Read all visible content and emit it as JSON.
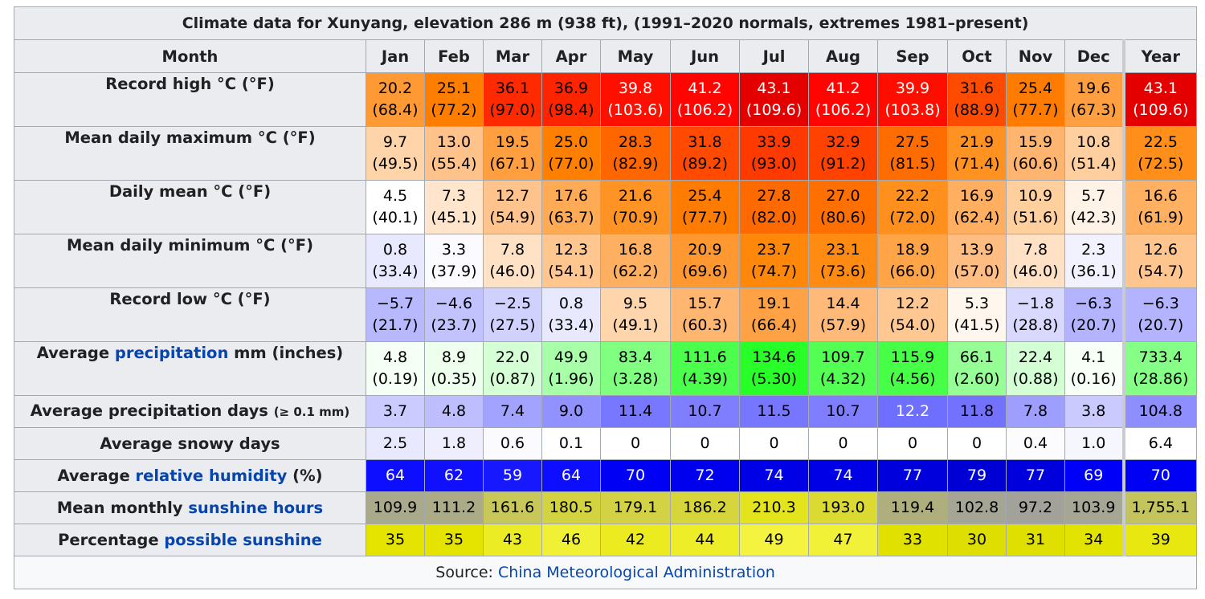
{
  "title": "Climate data for Xunyang, elevation 286 m (938 ft), (1991–2020 normals, extremes 1981–present)",
  "header": {
    "label": "Month",
    "months": [
      "Jan",
      "Feb",
      "Mar",
      "Apr",
      "May",
      "Jun",
      "Jul",
      "Aug",
      "Sep",
      "Oct",
      "Nov",
      "Dec",
      "Year"
    ]
  },
  "rows": [
    {
      "label": "Record high °C (°F)",
      "cells": [
        {
          "c": "20.2",
          "f": "(68.4)",
          "bg": "#ff9933",
          "fg": "#000000"
        },
        {
          "c": "25.1",
          "f": "(77.2)",
          "bg": "#ff7e00",
          "fg": "#000000"
        },
        {
          "c": "36.1",
          "f": "(97.0)",
          "bg": "#ff2a00",
          "fg": "#000000"
        },
        {
          "c": "36.9",
          "f": "(98.4)",
          "bg": "#ff2400",
          "fg": "#000000"
        },
        {
          "c": "39.8",
          "f": "(103.6)",
          "bg": "#ff0f00",
          "fg": "#ffffff"
        },
        {
          "c": "41.2",
          "f": "(106.2)",
          "bg": "#ff0400",
          "fg": "#ffffff"
        },
        {
          "c": "43.1",
          "f": "(109.6)",
          "bg": "#e50000",
          "fg": "#ffffff"
        },
        {
          "c": "41.2",
          "f": "(106.2)",
          "bg": "#ff0400",
          "fg": "#ffffff"
        },
        {
          "c": "39.9",
          "f": "(103.8)",
          "bg": "#ff0e00",
          "fg": "#ffffff"
        },
        {
          "c": "31.6",
          "f": "(88.9)",
          "bg": "#ff4b00",
          "fg": "#000000"
        },
        {
          "c": "25.4",
          "f": "(77.7)",
          "bg": "#ff7c00",
          "fg": "#000000"
        },
        {
          "c": "19.6",
          "f": "(67.3)",
          "bg": "#ff9f40",
          "fg": "#000000"
        },
        {
          "c": "43.1",
          "f": "(109.6)",
          "bg": "#e50000",
          "fg": "#ffffff"
        }
      ]
    },
    {
      "label": "Mean daily maximum °C (°F)",
      "cells": [
        {
          "c": "9.7",
          "f": "(49.5)",
          "bg": "#ffd4a9",
          "fg": "#000000"
        },
        {
          "c": "13.0",
          "f": "(55.4)",
          "bg": "#ffc28a",
          "fg": "#000000"
        },
        {
          "c": "19.5",
          "f": "(67.1)",
          "bg": "#ff9f40",
          "fg": "#000000"
        },
        {
          "c": "25.0",
          "f": "(77.0)",
          "bg": "#ff7f00",
          "fg": "#000000"
        },
        {
          "c": "28.3",
          "f": "(82.9)",
          "bg": "#ff6600",
          "fg": "#000000"
        },
        {
          "c": "31.8",
          "f": "(89.2)",
          "bg": "#ff4a00",
          "fg": "#000000"
        },
        {
          "c": "33.9",
          "f": "(93.0)",
          "bg": "#ff3a00",
          "fg": "#000000"
        },
        {
          "c": "32.9",
          "f": "(91.2)",
          "bg": "#ff4200",
          "fg": "#000000"
        },
        {
          "c": "27.5",
          "f": "(81.5)",
          "bg": "#ff6c00",
          "fg": "#000000"
        },
        {
          "c": "21.9",
          "f": "(71.4)",
          "bg": "#ff9220",
          "fg": "#000000"
        },
        {
          "c": "15.9",
          "f": "(60.6)",
          "bg": "#ffb570",
          "fg": "#000000"
        },
        {
          "c": "10.8",
          "f": "(51.4)",
          "bg": "#ffcf9f",
          "fg": "#000000"
        },
        {
          "c": "22.5",
          "f": "(72.5)",
          "bg": "#ff8e1a",
          "fg": "#000000"
        }
      ]
    },
    {
      "label": "Daily mean °C (°F)",
      "cells": [
        {
          "c": "4.5",
          "f": "(40.1)",
          "bg": "#ffffff",
          "fg": "#000000"
        },
        {
          "c": "7.3",
          "f": "(45.1)",
          "bg": "#ffe5cb",
          "fg": "#000000"
        },
        {
          "c": "12.7",
          "f": "(54.9)",
          "bg": "#ffc48d",
          "fg": "#000000"
        },
        {
          "c": "17.6",
          "f": "(63.7)",
          "bg": "#ffab56",
          "fg": "#000000"
        },
        {
          "c": "21.6",
          "f": "(70.9)",
          "bg": "#ff9424",
          "fg": "#000000"
        },
        {
          "c": "25.4",
          "f": "(77.7)",
          "bg": "#ff7c00",
          "fg": "#000000"
        },
        {
          "c": "27.8",
          "f": "(82.0)",
          "bg": "#ff6a00",
          "fg": "#000000"
        },
        {
          "c": "27.0",
          "f": "(80.6)",
          "bg": "#ff7000",
          "fg": "#000000"
        },
        {
          "c": "22.2",
          "f": "(72.0)",
          "bg": "#ff901d",
          "fg": "#000000"
        },
        {
          "c": "16.9",
          "f": "(62.4)",
          "bg": "#ffaf5f",
          "fg": "#000000"
        },
        {
          "c": "10.9",
          "f": "(51.6)",
          "bg": "#ffcf9e",
          "fg": "#000000"
        },
        {
          "c": "5.7",
          "f": "(42.3)",
          "bg": "#fff3e7",
          "fg": "#000000"
        },
        {
          "c": "16.6",
          "f": "(61.9)",
          "bg": "#ffb061",
          "fg": "#000000"
        }
      ]
    },
    {
      "label": "Mean daily minimum °C (°F)",
      "cells": [
        {
          "c": "0.8",
          "f": "(33.4)",
          "bg": "#e8e8ff",
          "fg": "#000000"
        },
        {
          "c": "3.3",
          "f": "(37.9)",
          "bg": "#fbfbff",
          "fg": "#000000"
        },
        {
          "c": "7.8",
          "f": "(46.0)",
          "bg": "#ffe2c5",
          "fg": "#000000"
        },
        {
          "c": "12.3",
          "f": "(54.1)",
          "bg": "#ffc690",
          "fg": "#000000"
        },
        {
          "c": "16.8",
          "f": "(62.2)",
          "bg": "#ffaf60",
          "fg": "#000000"
        },
        {
          "c": "20.9",
          "f": "(69.6)",
          "bg": "#ff9830",
          "fg": "#000000"
        },
        {
          "c": "23.7",
          "f": "(74.7)",
          "bg": "#ff8709",
          "fg": "#000000"
        },
        {
          "c": "23.1",
          "f": "(73.6)",
          "bg": "#ff8b12",
          "fg": "#000000"
        },
        {
          "c": "18.9",
          "f": "(66.0)",
          "bg": "#ffa447",
          "fg": "#000000"
        },
        {
          "c": "13.9",
          "f": "(57.0)",
          "bg": "#ffbd81",
          "fg": "#000000"
        },
        {
          "c": "7.8",
          "f": "(46.0)",
          "bg": "#ffe2c5",
          "fg": "#000000"
        },
        {
          "c": "2.3",
          "f": "(36.1)",
          "bg": "#f2f2ff",
          "fg": "#000000"
        },
        {
          "c": "12.6",
          "f": "(54.7)",
          "bg": "#ffc58e",
          "fg": "#000000"
        }
      ]
    },
    {
      "label": "Record low °C (°F)",
      "cells": [
        {
          "c": "−5.7",
          "f": "(21.7)",
          "bg": "#b8b8ff",
          "fg": "#000000"
        },
        {
          "c": "−4.6",
          "f": "(23.7)",
          "bg": "#c2c2ff",
          "fg": "#000000"
        },
        {
          "c": "−2.5",
          "f": "(27.5)",
          "bg": "#d1d1ff",
          "fg": "#000000"
        },
        {
          "c": "0.8",
          "f": "(33.4)",
          "bg": "#e8e8ff",
          "fg": "#000000"
        },
        {
          "c": "9.5",
          "f": "(49.1)",
          "bg": "#ffd5ab",
          "fg": "#000000"
        },
        {
          "c": "15.7",
          "f": "(60.3)",
          "bg": "#ffb671",
          "fg": "#000000"
        },
        {
          "c": "19.1",
          "f": "(66.4)",
          "bg": "#ffa245",
          "fg": "#000000"
        },
        {
          "c": "14.4",
          "f": "(57.9)",
          "bg": "#ffba79",
          "fg": "#000000"
        },
        {
          "c": "12.2",
          "f": "(54.0)",
          "bg": "#ffc792",
          "fg": "#000000"
        },
        {
          "c": "5.3",
          "f": "(41.5)",
          "bg": "#fff6ee",
          "fg": "#000000"
        },
        {
          "c": "−1.8",
          "f": "(28.8)",
          "bg": "#d9d9ff",
          "fg": "#000000"
        },
        {
          "c": "−6.3",
          "f": "(20.7)",
          "bg": "#b3b3ff",
          "fg": "#000000"
        },
        {
          "c": "−6.3",
          "f": "(20.7)",
          "bg": "#b3b3ff",
          "fg": "#000000"
        }
      ]
    },
    {
      "label_parts": [
        "Average ",
        "precipitation",
        " mm (inches)"
      ],
      "cells": [
        {
          "c": "4.8",
          "f": "(0.19)",
          "bg": "#f6fff6",
          "fg": "#000000"
        },
        {
          "c": "8.9",
          "f": "(0.35)",
          "bg": "#eeffee",
          "fg": "#000000"
        },
        {
          "c": "22.0",
          "f": "(0.87)",
          "bg": "#d5ffd5",
          "fg": "#000000"
        },
        {
          "c": "49.9",
          "f": "(1.96)",
          "bg": "#a7ffa7",
          "fg": "#000000"
        },
        {
          "c": "83.4",
          "f": "(3.28)",
          "bg": "#80ff80",
          "fg": "#000000"
        },
        {
          "c": "111.6",
          "f": "(4.39)",
          "bg": "#4cff4c",
          "fg": "#000000"
        },
        {
          "c": "134.6",
          "f": "(5.30)",
          "bg": "#28ff28",
          "fg": "#000000"
        },
        {
          "c": "109.7",
          "f": "(4.32)",
          "bg": "#52ff52",
          "fg": "#000000"
        },
        {
          "c": "115.9",
          "f": "(4.56)",
          "bg": "#48ff48",
          "fg": "#000000"
        },
        {
          "c": "66.1",
          "f": "(2.60)",
          "bg": "#95ff95",
          "fg": "#000000"
        },
        {
          "c": "22.4",
          "f": "(0.88)",
          "bg": "#d4ffd4",
          "fg": "#000000"
        },
        {
          "c": "4.1",
          "f": "(0.16)",
          "bg": "#f7fff7",
          "fg": "#000000"
        },
        {
          "c": "733.4",
          "f": "(28.86)",
          "bg": "#86ff86",
          "fg": "#000000"
        }
      ]
    },
    {
      "label_parts": [
        "Average precipitation days ",
        "(≥ 0.1 mm)"
      ],
      "cells": [
        {
          "c": "3.7",
          "bg": "#cbcbff",
          "fg": "#000000"
        },
        {
          "c": "4.8",
          "bg": "#bebeff",
          "fg": "#000000"
        },
        {
          "c": "7.4",
          "bg": "#a2a2ff",
          "fg": "#000000"
        },
        {
          "c": "9.0",
          "bg": "#9191ff",
          "fg": "#000000"
        },
        {
          "c": "11.4",
          "bg": "#7777ff",
          "fg": "#000000"
        },
        {
          "c": "10.7",
          "bg": "#7e7eff",
          "fg": "#000000"
        },
        {
          "c": "11.5",
          "bg": "#7676ff",
          "fg": "#000000"
        },
        {
          "c": "10.7",
          "bg": "#7e7eff",
          "fg": "#000000"
        },
        {
          "c": "12.2",
          "bg": "#6e6eff",
          "fg": "#ffffff"
        },
        {
          "c": "11.8",
          "bg": "#7272ff",
          "fg": "#000000"
        },
        {
          "c": "7.8",
          "bg": "#9e9eff",
          "fg": "#000000"
        },
        {
          "c": "3.8",
          "bg": "#cacaff",
          "fg": "#000000"
        },
        {
          "c": "104.8",
          "bg": "#8e8eff",
          "fg": "#000000"
        }
      ]
    },
    {
      "label": "Average snowy days",
      "cells": [
        {
          "c": "2.5",
          "bg": "#e8e8ff",
          "fg": "#000000"
        },
        {
          "c": "1.8",
          "bg": "#eeeeff",
          "fg": "#000000"
        },
        {
          "c": "0.6",
          "bg": "#fafaff",
          "fg": "#000000"
        },
        {
          "c": "0.1",
          "bg": "#ffffff",
          "fg": "#000000"
        },
        {
          "c": "0",
          "bg": "#ffffff",
          "fg": "#000000"
        },
        {
          "c": "0",
          "bg": "#ffffff",
          "fg": "#000000"
        },
        {
          "c": "0",
          "bg": "#ffffff",
          "fg": "#000000"
        },
        {
          "c": "0",
          "bg": "#ffffff",
          "fg": "#000000"
        },
        {
          "c": "0",
          "bg": "#ffffff",
          "fg": "#000000"
        },
        {
          "c": "0",
          "bg": "#ffffff",
          "fg": "#000000"
        },
        {
          "c": "0.4",
          "bg": "#fcfcff",
          "fg": "#000000"
        },
        {
          "c": "1.0",
          "bg": "#f6f6ff",
          "fg": "#000000"
        },
        {
          "c": "6.4",
          "bg": "#ffffff",
          "fg": "#000000"
        }
      ]
    },
    {
      "label_parts": [
        "Average ",
        "relative humidity",
        " (%)"
      ],
      "cells": [
        {
          "c": "64",
          "bg": "#0d0dff",
          "fg": "#ffffff"
        },
        {
          "c": "62",
          "bg": "#1010ff",
          "fg": "#ffffff"
        },
        {
          "c": "59",
          "bg": "#1818ff",
          "fg": "#ffffff"
        },
        {
          "c": "64",
          "bg": "#0d0dff",
          "fg": "#ffffff"
        },
        {
          "c": "70",
          "bg": "#0000f4",
          "fg": "#ffffff"
        },
        {
          "c": "72",
          "bg": "#0000ee",
          "fg": "#ffffff"
        },
        {
          "c": "74",
          "bg": "#0000e6",
          "fg": "#ffffff"
        },
        {
          "c": "74",
          "bg": "#0000e6",
          "fg": "#ffffff"
        },
        {
          "c": "77",
          "bg": "#0000dd",
          "fg": "#ffffff"
        },
        {
          "c": "79",
          "bg": "#0000d5",
          "fg": "#ffffff"
        },
        {
          "c": "77",
          "bg": "#0000dd",
          "fg": "#ffffff"
        },
        {
          "c": "69",
          "bg": "#0000f8",
          "fg": "#ffffff"
        },
        {
          "c": "70",
          "bg": "#0000f4",
          "fg": "#ffffff"
        }
      ]
    },
    {
      "label_parts": [
        "Mean monthly ",
        "sunshine hours"
      ],
      "cells": [
        {
          "c": "109.9",
          "bg": "#a9a98b",
          "fg": "#000000"
        },
        {
          "c": "111.2",
          "bg": "#abab88",
          "fg": "#000000"
        },
        {
          "c": "161.6",
          "bg": "#c8c85a",
          "fg": "#000000"
        },
        {
          "c": "180.5",
          "bg": "#d3d342",
          "fg": "#000000"
        },
        {
          "c": "179.1",
          "bg": "#d2d244",
          "fg": "#000000"
        },
        {
          "c": "186.2",
          "bg": "#d6d63c",
          "fg": "#000000"
        },
        {
          "c": "210.3",
          "bg": "#e4e41d",
          "fg": "#000000"
        },
        {
          "c": "193.0",
          "bg": "#dada33",
          "fg": "#000000"
        },
        {
          "c": "119.4",
          "bg": "#afaf7e",
          "fg": "#000000"
        },
        {
          "c": "102.8",
          "bg": "#a5a595",
          "fg": "#000000"
        },
        {
          "c": "97.2",
          "bg": "#a2a29b",
          "fg": "#000000"
        },
        {
          "c": "103.9",
          "bg": "#a6a694",
          "fg": "#000000"
        },
        {
          "c": "1,755.1",
          "bg": "#c4c45f",
          "fg": "#000000"
        }
      ]
    },
    {
      "label_parts": [
        "Percentage ",
        "possible sunshine"
      ],
      "cells": [
        {
          "c": "35",
          "bg": "#e4e400",
          "fg": "#000000"
        },
        {
          "c": "35",
          "bg": "#e4e400",
          "fg": "#000000"
        },
        {
          "c": "43",
          "bg": "#ecec24",
          "fg": "#000000"
        },
        {
          "c": "46",
          "bg": "#f0f034",
          "fg": "#000000"
        },
        {
          "c": "42",
          "bg": "#ebeb20",
          "fg": "#000000"
        },
        {
          "c": "44",
          "bg": "#eeee28",
          "fg": "#000000"
        },
        {
          "c": "49",
          "bg": "#f4f440",
          "fg": "#000000"
        },
        {
          "c": "47",
          "bg": "#f1f138",
          "fg": "#000000"
        },
        {
          "c": "33",
          "bg": "#e1e100",
          "fg": "#000000"
        },
        {
          "c": "30",
          "bg": "#dede00",
          "fg": "#000000"
        },
        {
          "c": "31",
          "bg": "#dfdf00",
          "fg": "#000000"
        },
        {
          "c": "34",
          "bg": "#e3e300",
          "fg": "#000000"
        },
        {
          "c": "39",
          "bg": "#e8e810",
          "fg": "#000000"
        }
      ]
    }
  ],
  "source": {
    "prefix": "Source: ",
    "link": "China Meteorological Administration"
  }
}
